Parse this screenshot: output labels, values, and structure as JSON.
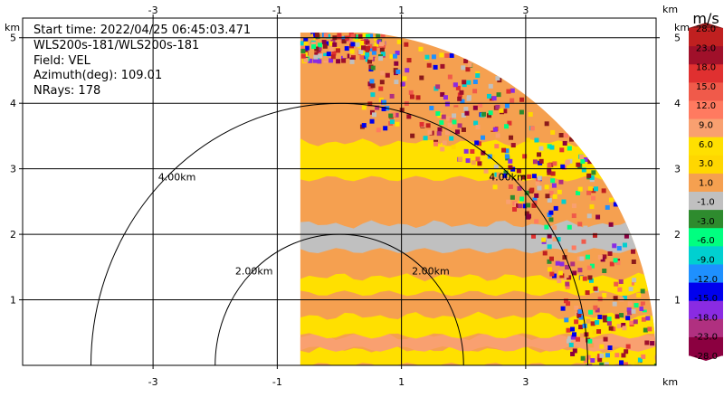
{
  "header": {
    "start_time": "Start time: 2022/04/25 06:45:03.471",
    "instrument": "WLS200s-181/WLS200s-181",
    "field": "Field: VEL",
    "azimuth": "Azimuth(deg): 109.01",
    "nrays": "NRays: 178"
  },
  "chart_data": {
    "type": "heatmap",
    "description_kind": "RHI radial velocity scan",
    "x_unit_label": "km",
    "y_unit_label": "km",
    "xlim": [
      -5.1,
      5.1
    ],
    "ylim": [
      0,
      5.3
    ],
    "x_ticks": [
      -3,
      -1,
      1,
      3
    ],
    "y_ticks": [
      1,
      2,
      3,
      4,
      5
    ],
    "x_tick_labels": [
      "-3",
      "-1",
      "1",
      "3"
    ],
    "y_tick_labels": [
      "1",
      "2",
      "3",
      "4",
      "5"
    ],
    "grid": true,
    "range_rings": [
      {
        "radius_km": 2.0,
        "label": "2.00km"
      },
      {
        "radius_km": 4.0,
        "label": "4.00km"
      }
    ],
    "scan": {
      "x_start_km": -0.63,
      "max_range_km": 5.1,
      "top_km": 5.08,
      "layers": [
        {
          "from_km": 0.0,
          "to_km": 0.25,
          "value": 3.0
        },
        {
          "from_km": 0.25,
          "to_km": 0.45,
          "value": 6.0
        },
        {
          "from_km": 0.45,
          "to_km": 0.75,
          "value": 3.0
        },
        {
          "from_km": 1.1,
          "to_km": 1.35,
          "value": 3.0
        },
        {
          "from_km": 1.75,
          "to_km": 2.15,
          "value": -2.0
        },
        {
          "from_km": 2.85,
          "to_km": 3.4,
          "value": 3.0
        }
      ],
      "background_value": 0.0
    },
    "colorbar": {
      "unit": "m/s",
      "label_range": [
        -28.0,
        28.0
      ],
      "tick_labels": [
        "28.0",
        "23.0",
        "18.0",
        "15.0",
        "12.0",
        "9.0",
        "6.0",
        "3.0",
        "1.0",
        "-1.0",
        "-3.0",
        "-6.0",
        "-9.0",
        "-12.0",
        "-15.0",
        "-18.0",
        "-23.0",
        "-28.0"
      ],
      "colors": [
        "#8b1a1a",
        "#c02020",
        "#a0102a",
        "#e03030",
        "#f05a4a",
        "#ff7a60",
        "#f9a070",
        "#ffe000",
        "#ffd700",
        "#f5a050",
        "#c0c0c0",
        "#2e8b2e",
        "#00ff80",
        "#00d0d0",
        "#1e90ff",
        "#0000ee",
        "#8a2be2",
        "#b03080",
        "#8b0040"
      ]
    }
  }
}
